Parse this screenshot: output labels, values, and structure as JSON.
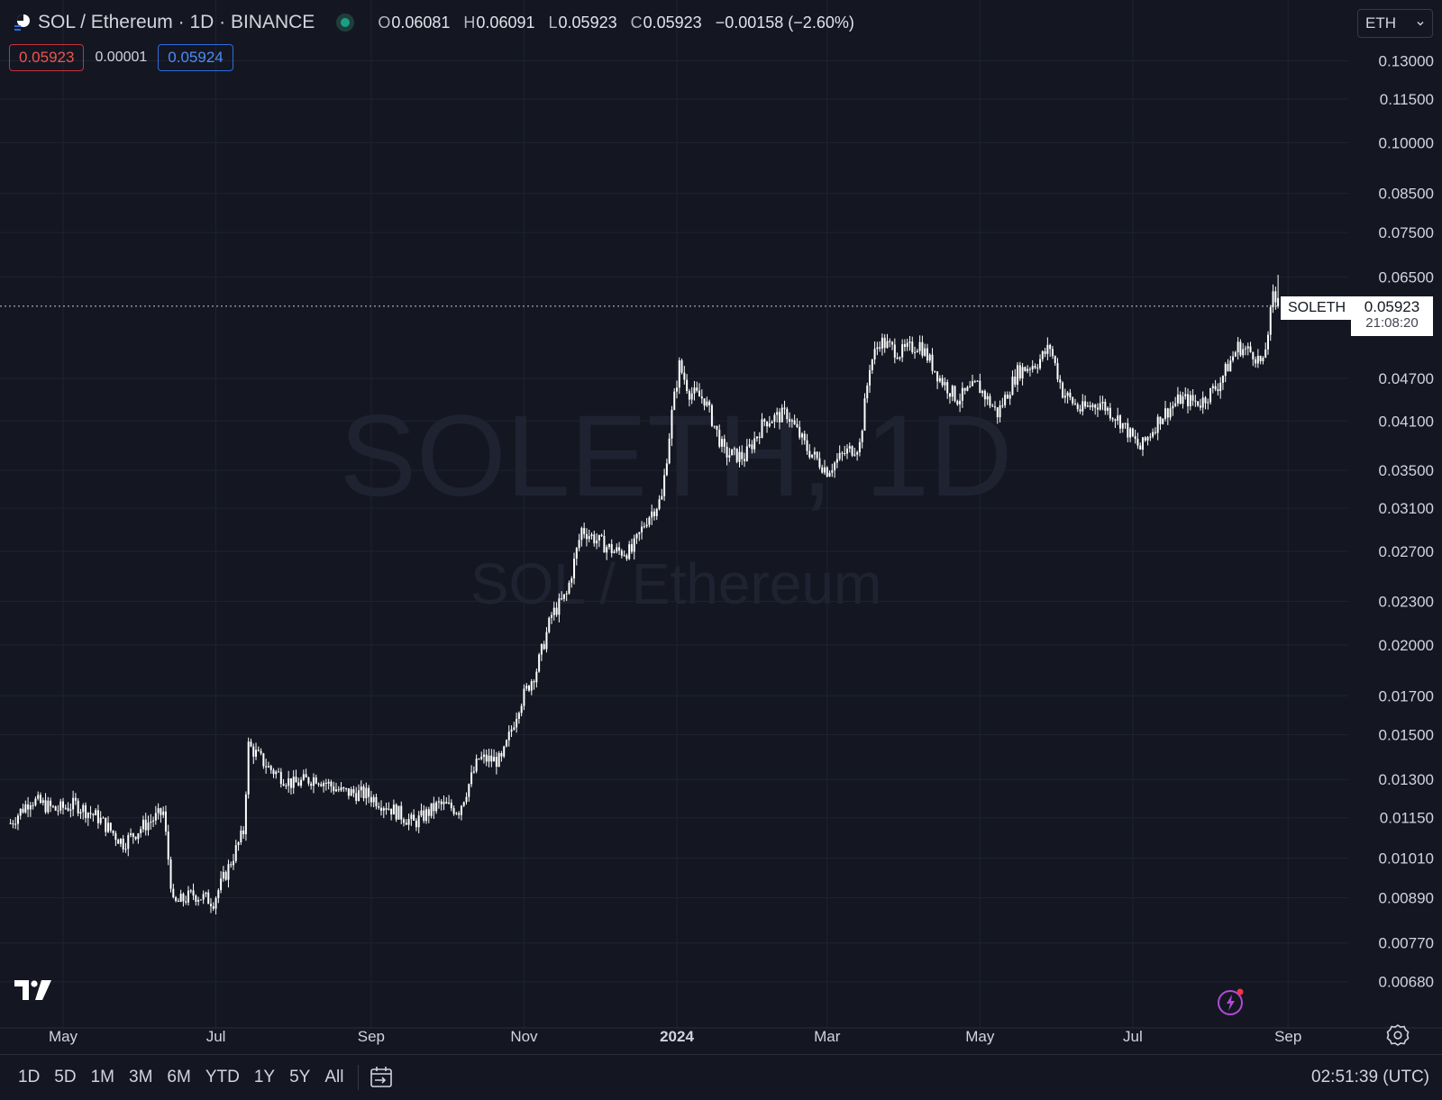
{
  "header": {
    "symbol_title": "SOL / Ethereum · 1D · BINANCE",
    "ohlc": [
      {
        "key": "O",
        "value": "0.06081"
      },
      {
        "key": "H",
        "value": "0.06091"
      },
      {
        "key": "L",
        "value": "0.05923"
      },
      {
        "key": "C",
        "value": "0.05923"
      }
    ],
    "change": "−0.00158 (−2.60%)",
    "sell_price": "0.05923",
    "spread": "0.00001",
    "buy_price": "0.05924",
    "currency": "ETH"
  },
  "last_price": {
    "symbol": "SOLETH",
    "price": "0.05923",
    "countdown": "21:08:20"
  },
  "watermark": {
    "line1": "SOLETH, 1D",
    "line2": "SOL / Ethereum"
  },
  "toolbar": {
    "timeframes": [
      "1D",
      "5D",
      "1M",
      "3M",
      "6M",
      "YTD",
      "1Y",
      "5Y",
      "All"
    ],
    "clock": "02:51:39 (UTC)"
  },
  "icons": {
    "logo": "tradingview-logo-icon",
    "status": "market-open-dot-icon",
    "dropdown": "chevron-down-icon",
    "range": "date-range-icon",
    "bolt": "lightning-icon",
    "settings": "settings-gear-icon"
  },
  "colors": {
    "background": "#141722",
    "grid": "#1f2330",
    "candles": "#ffffff",
    "sell": "#ef5350",
    "buy": "#4d8bf5",
    "status": "#1c9e85"
  },
  "chart_data": {
    "type": "line",
    "style": "candlestick",
    "scale": "log",
    "y_axis_position": "right",
    "y_ticks": [
      0.13,
      0.115,
      0.1,
      0.085,
      0.075,
      0.065,
      0.047,
      0.041,
      0.035,
      0.031,
      0.027,
      0.023,
      0.02,
      0.017,
      0.015,
      0.013,
      0.0115,
      0.0101,
      0.0089,
      0.0077,
      0.0068
    ],
    "y_tick_labels": [
      "0.13000",
      "0.11500",
      "0.10000",
      "0.08500",
      "0.07500",
      "0.06500",
      "0.04700",
      "0.04100",
      "0.03500",
      "0.03100",
      "0.02700",
      "0.02300",
      "0.02000",
      "0.01700",
      "0.01500",
      "0.01300",
      "0.01150",
      "0.01010",
      "0.00890",
      "0.00770",
      "0.00680"
    ],
    "x_ticks": [
      {
        "label": "May",
        "date": "2023-05-01",
        "bold": false
      },
      {
        "label": "Jul",
        "date": "2023-07-01",
        "bold": false
      },
      {
        "label": "Sep",
        "date": "2023-09-01",
        "bold": false
      },
      {
        "label": "Nov",
        "date": "2023-11-01",
        "bold": false
      },
      {
        "label": "2024",
        "date": "2024-01-01",
        "bold": true
      },
      {
        "label": "Mar",
        "date": "2024-03-01",
        "bold": false
      },
      {
        "label": "May",
        "date": "2024-05-01",
        "bold": false
      },
      {
        "label": "Jul",
        "date": "2024-07-01",
        "bold": false
      },
      {
        "label": "Sep",
        "date": "2024-09-01",
        "bold": false
      }
    ],
    "last_value": 0.05923,
    "series": [
      {
        "points": [
          [
            "2023-04-10",
            0.0113
          ],
          [
            "2023-04-18",
            0.0122
          ],
          [
            "2023-04-28",
            0.0118
          ],
          [
            "2023-05-06",
            0.012
          ],
          [
            "2023-05-15",
            0.0115
          ],
          [
            "2023-05-25",
            0.0106
          ],
          [
            "2023-06-02",
            0.0112
          ],
          [
            "2023-06-10",
            0.0117
          ],
          [
            "2023-06-14",
            0.0087
          ],
          [
            "2023-06-22",
            0.009
          ],
          [
            "2023-06-30",
            0.0088
          ],
          [
            "2023-07-06",
            0.0098
          ],
          [
            "2023-07-12",
            0.011
          ],
          [
            "2023-07-14",
            0.0145
          ],
          [
            "2023-07-22",
            0.0135
          ],
          [
            "2023-08-01",
            0.0128
          ],
          [
            "2023-08-10",
            0.0131
          ],
          [
            "2023-08-20",
            0.0125
          ],
          [
            "2023-08-30",
            0.0124
          ],
          [
            "2023-09-08",
            0.0119
          ],
          [
            "2023-09-18",
            0.0113
          ],
          [
            "2023-09-28",
            0.012
          ],
          [
            "2023-10-06",
            0.0118
          ],
          [
            "2023-10-14",
            0.0139
          ],
          [
            "2023-10-23",
            0.0138
          ],
          [
            "2023-10-30",
            0.0165
          ],
          [
            "2023-11-06",
            0.0185
          ],
          [
            "2023-11-12",
            0.022
          ],
          [
            "2023-11-18",
            0.0235
          ],
          [
            "2023-11-24",
            0.029
          ],
          [
            "2023-11-30",
            0.028
          ],
          [
            "2023-12-07",
            0.027
          ],
          [
            "2023-12-14",
            0.027
          ],
          [
            "2023-12-20",
            0.03
          ],
          [
            "2023-12-26",
            0.032
          ],
          [
            "2023-12-30",
            0.042
          ],
          [
            "2024-01-02",
            0.049
          ],
          [
            "2024-01-06",
            0.045
          ],
          [
            "2024-01-12",
            0.044
          ],
          [
            "2024-01-20",
            0.037
          ],
          [
            "2024-01-28",
            0.0365
          ],
          [
            "2024-02-05",
            0.041
          ],
          [
            "2024-02-14",
            0.042
          ],
          [
            "2024-02-22",
            0.0375
          ],
          [
            "2024-03-01",
            0.035
          ],
          [
            "2024-03-08",
            0.037
          ],
          [
            "2024-03-14",
            0.038
          ],
          [
            "2024-03-18",
            0.049
          ],
          [
            "2024-03-22",
            0.053
          ],
          [
            "2024-03-30",
            0.051
          ],
          [
            "2024-04-07",
            0.0525
          ],
          [
            "2024-04-15",
            0.047
          ],
          [
            "2024-04-22",
            0.044
          ],
          [
            "2024-04-30",
            0.046
          ],
          [
            "2024-05-08",
            0.042
          ],
          [
            "2024-05-16",
            0.048
          ],
          [
            "2024-05-24",
            0.0495
          ],
          [
            "2024-05-29",
            0.052
          ],
          [
            "2024-06-03",
            0.045
          ],
          [
            "2024-06-10",
            0.0425
          ],
          [
            "2024-06-18",
            0.0435
          ],
          [
            "2024-06-26",
            0.041
          ],
          [
            "2024-07-04",
            0.0375
          ],
          [
            "2024-07-12",
            0.0415
          ],
          [
            "2024-07-20",
            0.044
          ],
          [
            "2024-07-28",
            0.0435
          ],
          [
            "2024-08-04",
            0.046
          ],
          [
            "2024-08-12",
            0.052
          ],
          [
            "2024-08-18",
            0.051
          ],
          [
            "2024-08-22",
            0.049
          ],
          [
            "2024-08-26",
            0.061
          ],
          [
            "2024-08-28",
            0.0592
          ]
        ]
      }
    ]
  }
}
